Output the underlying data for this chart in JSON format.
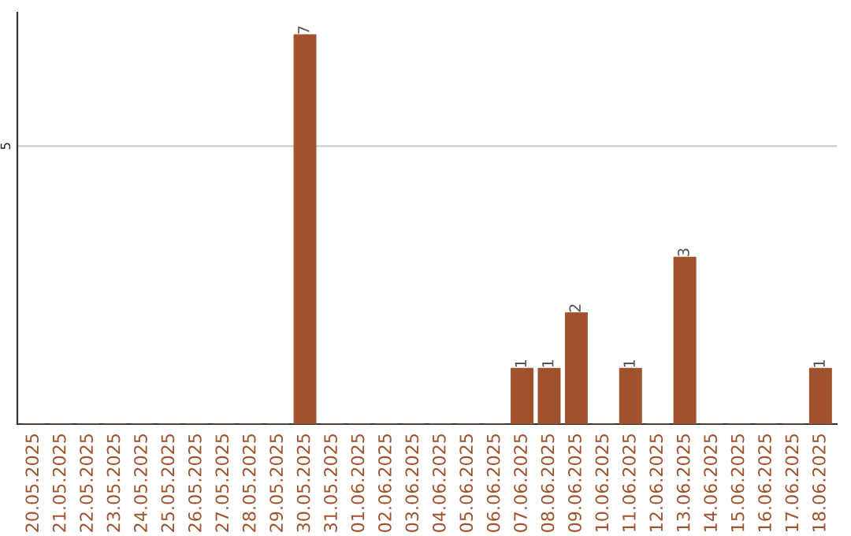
{
  "chart_data": {
    "type": "bar",
    "categories": [
      "20.05.2025",
      "21.05.2025",
      "22.05.2025",
      "23.05.2025",
      "24.05.2025",
      "25.05.2025",
      "26.05.2025",
      "27.05.2025",
      "28.05.2025",
      "29.05.2025",
      "30.05.2025",
      "31.05.2025",
      "01.06.2025",
      "02.06.2025",
      "03.06.2025",
      "04.06.2025",
      "05.06.2025",
      "06.06.2025",
      "07.06.2025",
      "08.06.2025",
      "09.06.2025",
      "10.06.2025",
      "11.06.2025",
      "12.06.2025",
      "13.06.2025",
      "14.06.2025",
      "15.06.2025",
      "16.06.2025",
      "17.06.2025",
      "18.06.2025"
    ],
    "values": [
      0,
      0,
      0,
      0,
      0,
      0,
      0,
      0,
      0,
      0,
      7,
      0,
      0,
      0,
      0,
      0,
      0,
      0,
      1,
      1,
      2,
      0,
      1,
      0,
      3,
      0,
      0,
      0,
      0,
      1
    ],
    "value_labels": [
      null,
      null,
      null,
      null,
      null,
      null,
      null,
      null,
      null,
      null,
      "7",
      null,
      null,
      null,
      null,
      null,
      null,
      null,
      "1",
      "1",
      "2",
      null,
      "1",
      null,
      "3",
      null,
      null,
      null,
      null,
      "1"
    ],
    "color": "#a0522d",
    "ylim": [
      0,
      7.4
    ],
    "yticks": [
      5
    ],
    "grid": "y",
    "legend": false
  }
}
